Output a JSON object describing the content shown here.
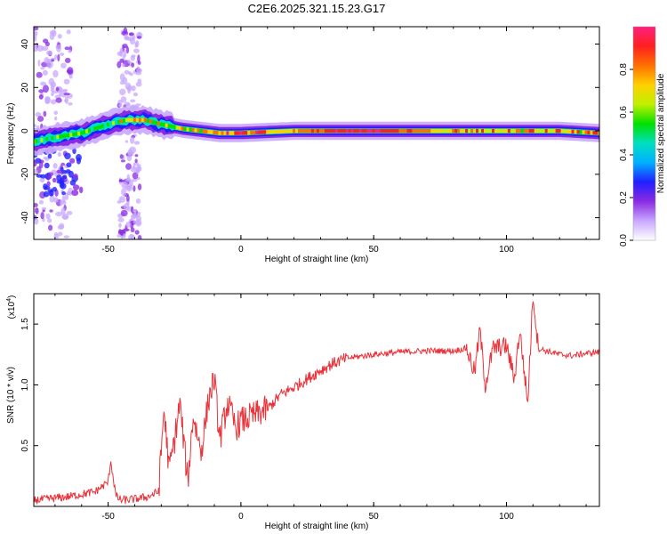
{
  "title": "C2E6.2025.321.15.23.G17",
  "chart_data": [
    {
      "type": "heatmap",
      "name": "spectrogram",
      "title": "C2E6.2025.321.15.23.G17",
      "xlabel": "Height of straight line (km)",
      "ylabel": "Frequency (Hz)",
      "xlim": [
        -78,
        135
      ],
      "ylim": [
        -50,
        48
      ],
      "x_ticks": [
        -50,
        0,
        50,
        100
      ],
      "y_ticks": [
        -40,
        -20,
        0,
        20,
        40
      ],
      "x_tick_labels": [
        "-50",
        "0",
        "50",
        "100"
      ],
      "y_tick_labels": [
        "-40",
        "-20",
        "0",
        "20",
        "40"
      ],
      "ridge": {
        "x": [
          -78,
          -70,
          -60,
          -50,
          -43,
          -36,
          -30,
          -22,
          -15,
          -8,
          0,
          10,
          20,
          40,
          60,
          80,
          100,
          120,
          135
        ],
        "freq": [
          -5,
          -3,
          -1,
          3,
          5,
          5,
          3,
          1,
          0,
          -1,
          -1,
          -0.5,
          0,
          0,
          0,
          0,
          0,
          0,
          -1
        ]
      },
      "colorbar": {
        "label": "Normalized spectral amplitude",
        "range": [
          0,
          1
        ],
        "ticks": [
          0.0,
          0.2,
          0.4,
          0.6,
          0.8
        ],
        "tick_labels": [
          "0.0",
          "0.2",
          "0.4",
          "0.6",
          "0.8"
        ],
        "colors": [
          "#ffffff",
          "#c8a8ff",
          "#8a2be2",
          "#2020ff",
          "#00b0ff",
          "#00e0c0",
          "#00e000",
          "#c0f000",
          "#ffd000",
          "#ff7000",
          "#ff2020",
          "#ff2080"
        ]
      }
    },
    {
      "type": "line",
      "name": "snr",
      "xlabel": "Height of straight line (km)",
      "ylabel": "SNR (10 * v/v)",
      "y_multiplier": "(x10",
      "y_multiplier_exp": "4",
      "y_multiplier_close": ")",
      "xlim": [
        -78,
        135
      ],
      "ylim": [
        0,
        1.75
      ],
      "x_ticks": [
        -50,
        0,
        50,
        100
      ],
      "y_ticks": [
        0.5,
        1.0,
        1.5
      ],
      "x_tick_labels": [
        "-50",
        "0",
        "50",
        "100"
      ],
      "y_tick_labels": [
        "0.5",
        "1.0",
        "1.5"
      ],
      "line_color": "#e8333a",
      "series": [
        {
          "name": "SNR",
          "x": [
            -78,
            -65,
            -55,
            -50,
            -49,
            -48,
            -47,
            -45,
            -40,
            -35,
            -31,
            -30,
            -29,
            -27,
            -25,
            -23,
            -20,
            -18,
            -15,
            -12,
            -10,
            -8,
            -5,
            -2,
            0,
            5,
            10,
            15,
            20,
            25,
            30,
            35,
            40,
            50,
            60,
            70,
            80,
            85,
            88,
            90,
            92,
            95,
            100,
            103,
            105,
            108,
            110,
            112,
            115,
            120,
            125,
            130,
            135
          ],
          "y": [
            0.05,
            0.08,
            0.12,
            0.2,
            0.38,
            0.22,
            0.08,
            0.05,
            0.06,
            0.08,
            0.12,
            0.45,
            0.8,
            0.3,
            0.55,
            0.85,
            0.2,
            0.75,
            0.45,
            0.9,
            1.05,
            0.55,
            0.85,
            0.65,
            0.7,
            0.75,
            0.8,
            0.92,
            0.98,
            1.05,
            1.12,
            1.18,
            1.22,
            1.25,
            1.27,
            1.28,
            1.28,
            1.3,
            1.1,
            1.45,
            1.0,
            1.3,
            1.32,
            1.05,
            1.45,
            0.85,
            1.75,
            1.3,
            1.28,
            1.25,
            1.24,
            1.26,
            1.27
          ]
        }
      ]
    }
  ]
}
